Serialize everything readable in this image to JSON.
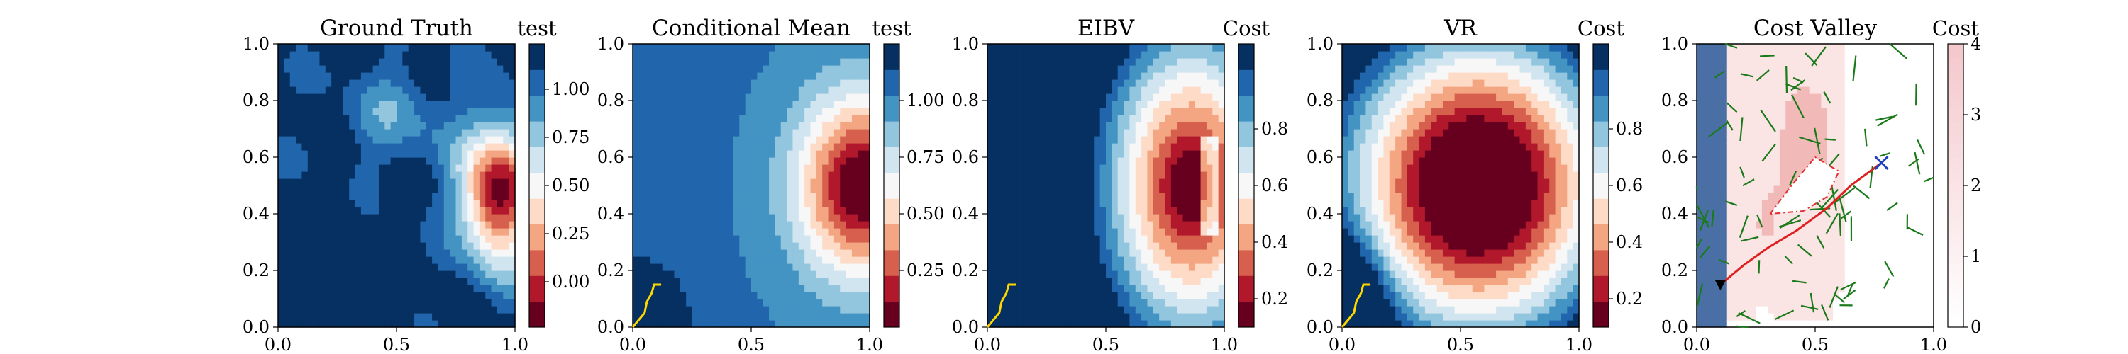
{
  "chart_data": [
    {
      "type": "heatmap",
      "title": "Ground Truth",
      "colorbar_label": "test",
      "xlim": [
        0,
        1
      ],
      "ylim": [
        0,
        1
      ],
      "x_ticks": [
        "0.0",
        "0.5",
        "1.0"
      ],
      "y_ticks": [
        "0.0",
        "0.2",
        "0.4",
        "0.6",
        "0.8",
        "1.0"
      ],
      "colorbar_ticks": [
        "0.00",
        "0.25",
        "0.50",
        "0.75",
        "1.00"
      ],
      "field": "ground_truth"
    },
    {
      "type": "heatmap",
      "title": "Conditional Mean",
      "colorbar_label": "test",
      "xlim": [
        0,
        1
      ],
      "ylim": [
        0,
        1
      ],
      "x_ticks": [
        "0.0",
        "0.5",
        "1.0"
      ],
      "y_ticks": [
        "0.0",
        "0.2",
        "0.4",
        "0.6",
        "0.8",
        "1.0"
      ],
      "colorbar_ticks": [
        "0.25",
        "0.50",
        "0.75",
        "1.00"
      ],
      "field": "conditional_mean",
      "path": [
        [
          0.0,
          0.0
        ],
        [
          0.05,
          0.05
        ],
        [
          0.06,
          0.09
        ],
        [
          0.08,
          0.12
        ],
        [
          0.09,
          0.15
        ],
        [
          0.12,
          0.15
        ]
      ]
    },
    {
      "type": "heatmap",
      "title": "EIBV",
      "colorbar_label": "Cost",
      "xlim": [
        0,
        1
      ],
      "ylim": [
        0,
        1
      ],
      "x_ticks": [
        "0.0",
        "0.5",
        "1.0"
      ],
      "y_ticks": [
        "0.0",
        "0.2",
        "0.4",
        "0.6",
        "0.8",
        "1.0"
      ],
      "colorbar_ticks": [
        "0.2",
        "0.4",
        "0.6",
        "0.8"
      ],
      "field": "eibv",
      "path": [
        [
          0.0,
          0.0
        ],
        [
          0.05,
          0.05
        ],
        [
          0.06,
          0.09
        ],
        [
          0.08,
          0.12
        ],
        [
          0.09,
          0.15
        ],
        [
          0.12,
          0.15
        ]
      ]
    },
    {
      "type": "heatmap",
      "title": "VR",
      "colorbar_label": "Cost",
      "xlim": [
        0,
        1
      ],
      "ylim": [
        0,
        1
      ],
      "x_ticks": [
        "0.0",
        "0.5",
        "1.0"
      ],
      "y_ticks": [
        "0.0",
        "0.2",
        "0.4",
        "0.6",
        "0.8",
        "1.0"
      ],
      "colorbar_ticks": [
        "0.2",
        "0.4",
        "0.6",
        "0.8"
      ],
      "field": "vr",
      "path": [
        [
          0.0,
          0.0
        ],
        [
          0.05,
          0.05
        ],
        [
          0.06,
          0.09
        ],
        [
          0.08,
          0.12
        ],
        [
          0.09,
          0.15
        ],
        [
          0.12,
          0.15
        ]
      ]
    },
    {
      "type": "heatmap",
      "title": "Cost Valley",
      "colorbar_label": "Cost",
      "xlim": [
        0,
        1
      ],
      "ylim": [
        0,
        1
      ],
      "x_ticks": [
        "0.0",
        "0.5",
        "1.0"
      ],
      "y_ticks": [
        "0.0",
        "0.2",
        "0.4",
        "0.6",
        "0.8",
        "1.0"
      ],
      "colorbar_ticks": [
        "0",
        "1",
        "2",
        "3",
        "4"
      ],
      "field": "cost_valley",
      "start": [
        0.1,
        0.15
      ],
      "target": [
        0.78,
        0.58
      ],
      "route": [
        [
          0.1,
          0.15
        ],
        [
          0.2,
          0.22
        ],
        [
          0.3,
          0.28
        ],
        [
          0.42,
          0.34
        ],
        [
          0.55,
          0.42
        ],
        [
          0.65,
          0.5
        ],
        [
          0.78,
          0.58
        ]
      ],
      "obstacle": [
        [
          0.31,
          0.4
        ],
        [
          0.4,
          0.5
        ],
        [
          0.5,
          0.6
        ],
        [
          0.6,
          0.55
        ],
        [
          0.55,
          0.46
        ],
        [
          0.45,
          0.41
        ]
      ]
    }
  ],
  "colors": {
    "diverging": [
      "#67001f",
      "#b2182b",
      "#d6604d",
      "#f4a582",
      "#fddbc7",
      "#f7f7f7",
      "#d1e5f0",
      "#92c5de",
      "#4393c3",
      "#2166ac",
      "#053061"
    ],
    "cost": [
      "#ffffff",
      "#fbe4e4",
      "#f2b9b9",
      "#e08f95",
      "#c96b77"
    ],
    "path": "#ffd700",
    "tree": "#1a7a1a",
    "route": "#e02020",
    "obstacle": "#e03030",
    "low_cost_band": "#4a6fa5"
  }
}
